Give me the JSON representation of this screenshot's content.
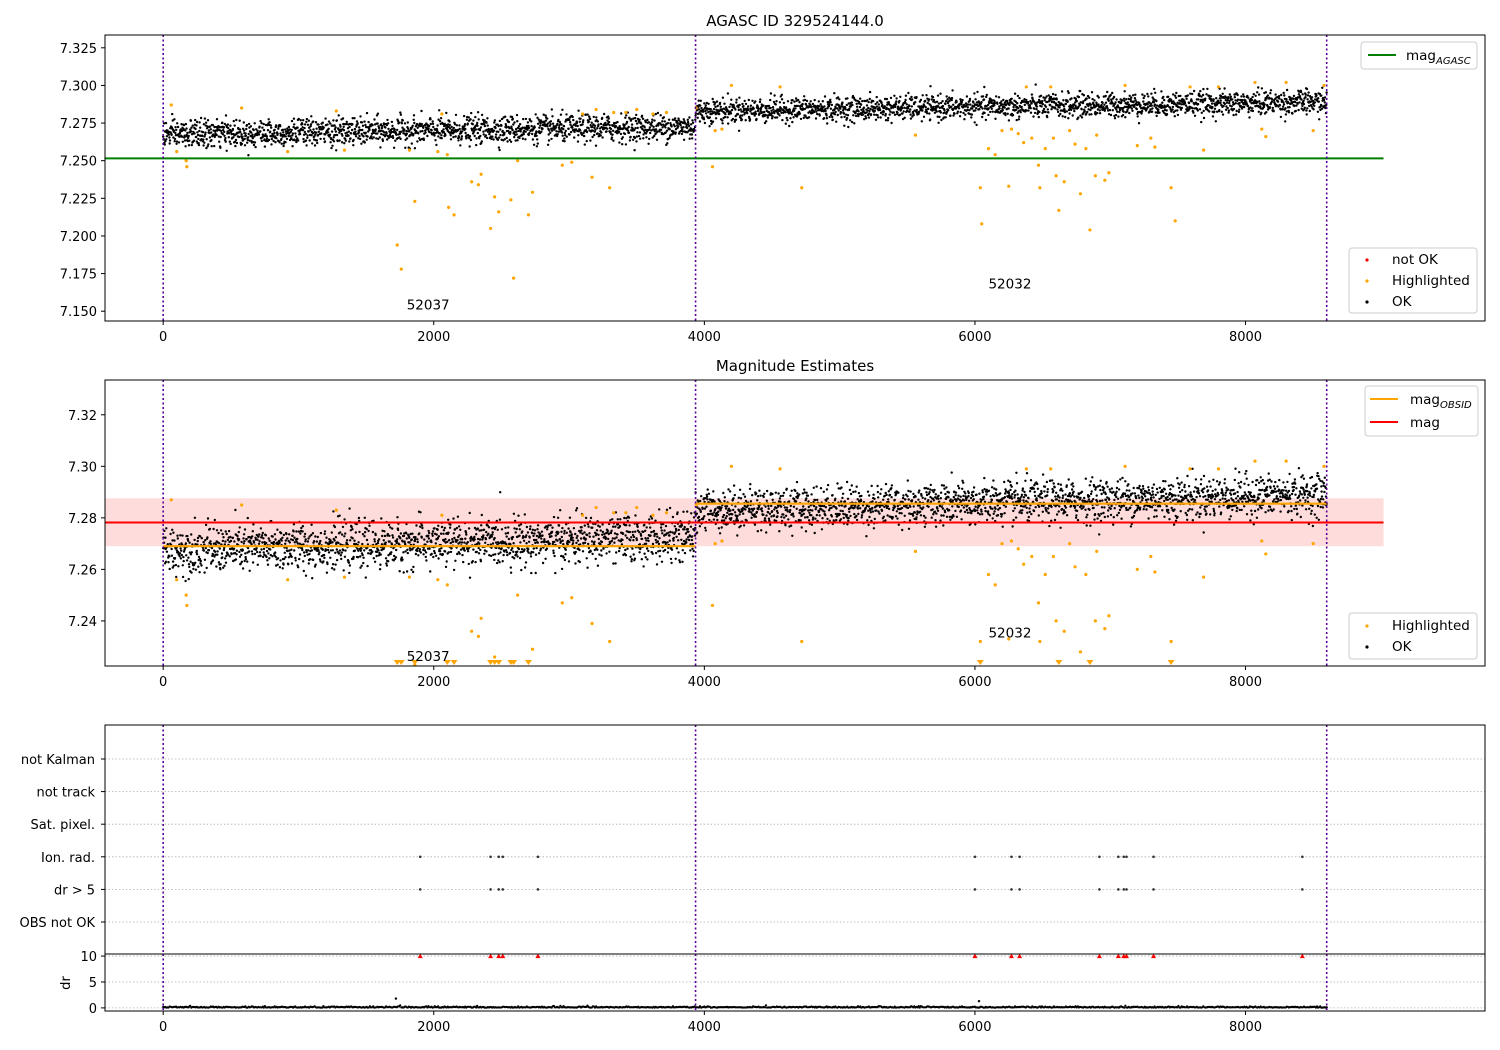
{
  "colors": {
    "ok": "#000000",
    "highlighted": "#ffa500",
    "not_ok": "#ff0000",
    "agasc_line": "#008000",
    "obsid_line": "#ffa500",
    "mag_line": "#ff0000",
    "mag_band": "#ffd6d6",
    "obs_boundary": "#5a0099",
    "grid": "#b0b0b0"
  },
  "chart_data": [
    {
      "id": "agasc",
      "type": "scatter",
      "title": "AGASC ID 329524144.0",
      "xlim": [
        -430,
        9770
      ],
      "ylim": [
        7.1435,
        7.3335
      ],
      "x_ticks": [
        0,
        2000,
        4000,
        6000,
        8000
      ],
      "y_ticks": [
        7.15,
        7.175,
        7.2,
        7.225,
        7.25,
        7.275,
        7.3,
        7.325
      ],
      "y_tick_labels": [
        "7.150",
        "7.175",
        "7.200",
        "7.225",
        "7.250",
        "7.275",
        "7.300",
        "7.325"
      ],
      "hlines": [
        {
          "name": "mag_AGASC",
          "y": 7.2515,
          "x_range": [
            -430,
            9020
          ],
          "color": "#008000"
        }
      ],
      "obs_boundaries": [
        0,
        3935,
        8600
      ],
      "annotations": [
        {
          "text": "52037",
          "x": 1800,
          "y": 7.151
        },
        {
          "text": "52032",
          "x": 6100,
          "y": 7.165
        }
      ],
      "legend": {
        "top": [
          {
            "label": "mag",
            "subscript": "AGASC",
            "kind": "line",
            "color": "#008000"
          }
        ],
        "bottom": [
          {
            "label": "not OK",
            "kind": "dot",
            "color": "#ff0000"
          },
          {
            "label": "Highlighted",
            "kind": "dot",
            "color": "#ffa500"
          },
          {
            "label": "OK",
            "kind": "dot",
            "color": "#000000"
          }
        ]
      },
      "ok_segments": [
        {
          "obsid": "52037",
          "x_range": [
            0,
            3935
          ],
          "y_start": 7.2675,
          "y_end": 7.2725,
          "spread": 0.0045
        },
        {
          "obsid": "52032",
          "x_range": [
            3935,
            8600
          ],
          "y_start": 7.283,
          "y_end": 7.289,
          "spread": 0.004
        }
      ],
      "highlighted_points": [
        {
          "x": 60,
          "y": 7.287
        },
        {
          "x": 100,
          "y": 7.256
        },
        {
          "x": 170,
          "y": 7.25
        },
        {
          "x": 175,
          "y": 7.246
        },
        {
          "x": 580,
          "y": 7.285
        },
        {
          "x": 920,
          "y": 7.256
        },
        {
          "x": 1280,
          "y": 7.283
        },
        {
          "x": 1340,
          "y": 7.257
        },
        {
          "x": 1730,
          "y": 7.194
        },
        {
          "x": 1760,
          "y": 7.178
        },
        {
          "x": 1820,
          "y": 7.257
        },
        {
          "x": 1860,
          "y": 7.223
        },
        {
          "x": 2030,
          "y": 7.256
        },
        {
          "x": 2060,
          "y": 7.281
        },
        {
          "x": 2100,
          "y": 7.254
        },
        {
          "x": 2110,
          "y": 7.219
        },
        {
          "x": 2150,
          "y": 7.214
        },
        {
          "x": 2280,
          "y": 7.236
        },
        {
          "x": 2330,
          "y": 7.234
        },
        {
          "x": 2350,
          "y": 7.241
        },
        {
          "x": 2420,
          "y": 7.205
        },
        {
          "x": 2450,
          "y": 7.226
        },
        {
          "x": 2480,
          "y": 7.216
        },
        {
          "x": 2570,
          "y": 7.224
        },
        {
          "x": 2590,
          "y": 7.172
        },
        {
          "x": 2620,
          "y": 7.25
        },
        {
          "x": 2700,
          "y": 7.214
        },
        {
          "x": 2730,
          "y": 7.229
        },
        {
          "x": 2950,
          "y": 7.247
        },
        {
          "x": 3020,
          "y": 7.249
        },
        {
          "x": 3100,
          "y": 7.281
        },
        {
          "x": 3170,
          "y": 7.239
        },
        {
          "x": 3200,
          "y": 7.284
        },
        {
          "x": 3300,
          "y": 7.232
        },
        {
          "x": 3330,
          "y": 7.282
        },
        {
          "x": 3420,
          "y": 7.282
        },
        {
          "x": 3500,
          "y": 7.284
        },
        {
          "x": 3620,
          "y": 7.281
        },
        {
          "x": 3720,
          "y": 7.282
        },
        {
          "x": 3940,
          "y": 7.285
        },
        {
          "x": 4060,
          "y": 7.246
        },
        {
          "x": 4080,
          "y": 7.27
        },
        {
          "x": 4130,
          "y": 7.271
        },
        {
          "x": 4200,
          "y": 7.3
        },
        {
          "x": 4560,
          "y": 7.299
        },
        {
          "x": 4720,
          "y": 7.232
        },
        {
          "x": 5560,
          "y": 7.267
        },
        {
          "x": 6040,
          "y": 7.232
        },
        {
          "x": 6050,
          "y": 7.208
        },
        {
          "x": 6100,
          "y": 7.258
        },
        {
          "x": 6150,
          "y": 7.254
        },
        {
          "x": 6200,
          "y": 7.27
        },
        {
          "x": 6250,
          "y": 7.233
        },
        {
          "x": 6270,
          "y": 7.271
        },
        {
          "x": 6320,
          "y": 7.268
        },
        {
          "x": 6360,
          "y": 7.262
        },
        {
          "x": 6380,
          "y": 7.299
        },
        {
          "x": 6420,
          "y": 7.265
        },
        {
          "x": 6470,
          "y": 7.247
        },
        {
          "x": 6480,
          "y": 7.232
        },
        {
          "x": 6520,
          "y": 7.258
        },
        {
          "x": 6560,
          "y": 7.299
        },
        {
          "x": 6580,
          "y": 7.265
        },
        {
          "x": 6600,
          "y": 7.24
        },
        {
          "x": 6620,
          "y": 7.217
        },
        {
          "x": 6660,
          "y": 7.236
        },
        {
          "x": 6700,
          "y": 7.27
        },
        {
          "x": 6740,
          "y": 7.261
        },
        {
          "x": 6780,
          "y": 7.228
        },
        {
          "x": 6820,
          "y": 7.258
        },
        {
          "x": 6850,
          "y": 7.204
        },
        {
          "x": 6890,
          "y": 7.24
        },
        {
          "x": 6900,
          "y": 7.267
        },
        {
          "x": 6960,
          "y": 7.237
        },
        {
          "x": 6990,
          "y": 7.242
        },
        {
          "x": 7110,
          "y": 7.3
        },
        {
          "x": 7200,
          "y": 7.26
        },
        {
          "x": 7300,
          "y": 7.265
        },
        {
          "x": 7330,
          "y": 7.259
        },
        {
          "x": 7450,
          "y": 7.232
        },
        {
          "x": 7480,
          "y": 7.21
        },
        {
          "x": 7590,
          "y": 7.299
        },
        {
          "x": 7690,
          "y": 7.257
        },
        {
          "x": 7800,
          "y": 7.299
        },
        {
          "x": 8070,
          "y": 7.302
        },
        {
          "x": 8120,
          "y": 7.271
        },
        {
          "x": 8150,
          "y": 7.266
        },
        {
          "x": 8300,
          "y": 7.302
        },
        {
          "x": 8500,
          "y": 7.27
        },
        {
          "x": 8580,
          "y": 7.3
        }
      ]
    },
    {
      "id": "estimates",
      "type": "scatter",
      "title": "Magnitude Estimates",
      "xlim": [
        -430,
        9770
      ],
      "ylim": [
        7.2225,
        7.3335
      ],
      "x_ticks": [
        0,
        2000,
        4000,
        6000,
        8000
      ],
      "y_ticks": [
        7.24,
        7.26,
        7.28,
        7.3,
        7.32
      ],
      "y_tick_labels": [
        "7.24",
        "7.26",
        "7.28",
        "7.30",
        "7.32"
      ],
      "mag": {
        "value": 7.2782,
        "band": [
          7.269,
          7.2876
        ],
        "x_range": [
          -430,
          9020
        ]
      },
      "mag_obsid": [
        {
          "obsid": "52037",
          "x_range": [
            0,
            3935
          ],
          "value": 7.269
        },
        {
          "obsid": "52032",
          "x_range": [
            3935,
            8600
          ],
          "value": 7.2855
        }
      ],
      "obs_boundaries": [
        0,
        3935,
        8600
      ],
      "annotations": [
        {
          "text": "52037",
          "x": 1800,
          "y": 7.2245
        },
        {
          "text": "52032",
          "x": 6100,
          "y": 7.2335
        }
      ],
      "legend": {
        "top": [
          {
            "label": "mag",
            "subscript": "OBSID",
            "kind": "line",
            "color": "#ffa500"
          },
          {
            "label": "mag",
            "kind": "line",
            "color": "#ff0000"
          }
        ],
        "bottom": [
          {
            "label": "Highlighted",
            "kind": "dot",
            "color": "#ffa500"
          },
          {
            "label": "OK",
            "kind": "dot",
            "color": "#000000"
          }
        ]
      },
      "ok_segments": [
        {
          "obsid": "52037",
          "x_range": [
            0,
            3935
          ],
          "y_start": 7.2675,
          "y_end": 7.2725,
          "spread": 0.0045
        },
        {
          "obsid": "52032",
          "x_range": [
            3935,
            8600
          ],
          "y_start": 7.283,
          "y_end": 7.289,
          "spread": 0.004
        }
      ],
      "off_scale_x": [
        1730,
        1760,
        1860,
        2100,
        2150,
        2420,
        2450,
        2480,
        2570,
        2590,
        2700,
        6040,
        6620,
        6850,
        7450
      ]
    },
    {
      "id": "flags",
      "type": "scatter",
      "xlim": [
        -430,
        9770
      ],
      "x_ticks": [
        0,
        2000,
        4000,
        6000,
        8000
      ],
      "categories": [
        "not Kalman",
        "not track",
        "Sat. pixel.",
        "Ion. rad.",
        "dr > 5",
        "OBS not OK"
      ],
      "obs_boundaries": [
        0,
        3935,
        8600
      ],
      "flagged_x": [
        1900,
        2420,
        2480,
        2510,
        2770,
        6000,
        6270,
        6330,
        6920,
        7060,
        7100,
        7120,
        7320,
        8420
      ],
      "flagged_categories": [
        "Ion. rad.",
        "dr > 5"
      ]
    },
    {
      "id": "dr",
      "type": "scatter",
      "ylabel": "dr",
      "xlim": [
        -430,
        9770
      ],
      "ylim": [
        -0.6,
        10.4
      ],
      "x_ticks": [
        0,
        2000,
        4000,
        6000,
        8000
      ],
      "y_ticks": [
        0,
        5,
        10
      ],
      "y_tick_labels": [
        "0",
        "5",
        "10"
      ],
      "obs_boundaries": [
        0,
        3935,
        8600
      ],
      "dr_clipped_value": 10,
      "dr_clipped_x": [
        1900,
        2420,
        2480,
        2510,
        2770,
        6000,
        6270,
        6330,
        6920,
        7060,
        7100,
        7120,
        7320,
        8420
      ],
      "dr_outliers": [
        {
          "x": 1720,
          "y": 1.8
        },
        {
          "x": 6030,
          "y": 1.3
        }
      ]
    }
  ]
}
